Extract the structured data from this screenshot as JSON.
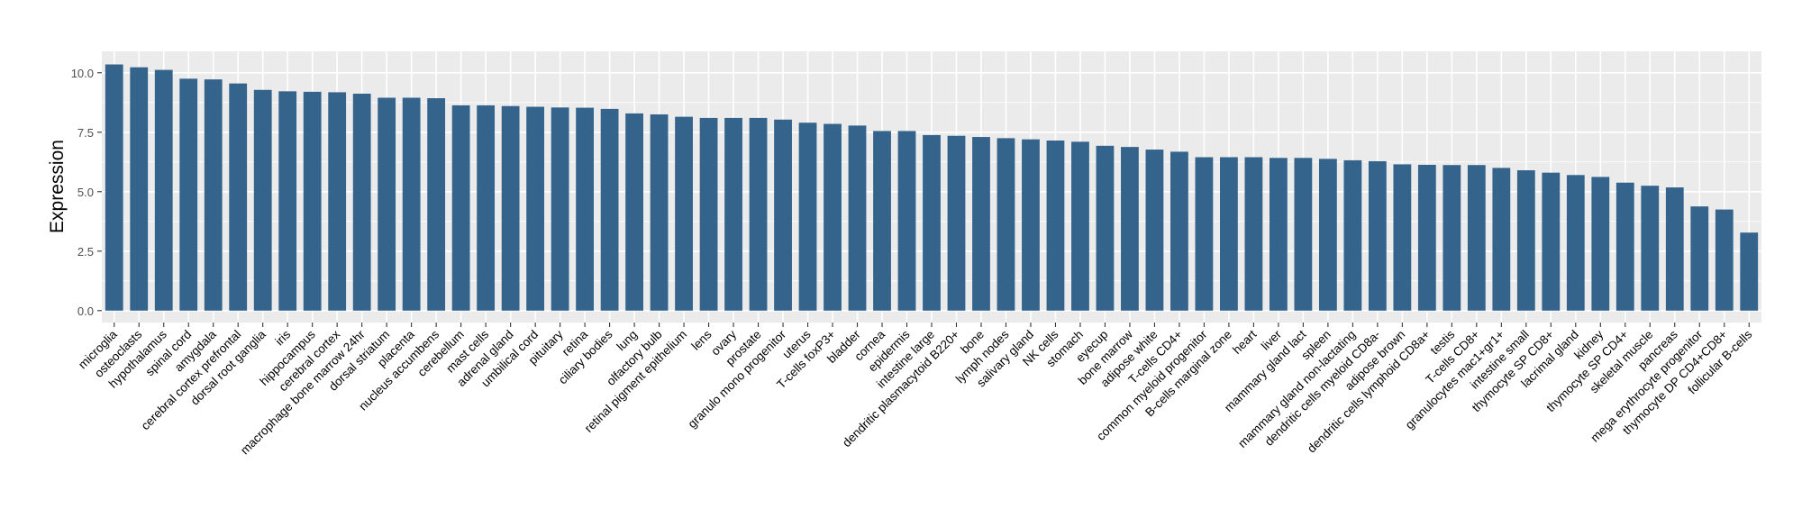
{
  "chart_data": {
    "type": "bar",
    "title": "",
    "xlabel": "",
    "ylabel": "Expression",
    "ylim": [
      -0.5,
      10.9
    ],
    "yticks": [
      0.0,
      2.5,
      5.0,
      7.5,
      10.0
    ],
    "ytick_labels": [
      "0.0",
      "2.5",
      "5.0",
      "7.5",
      "10.0"
    ],
    "grid": true,
    "legend": "none",
    "colors": {
      "bar": "#34638c",
      "panel": "#ebebeb",
      "grid": "#ffffff",
      "axis_text": "#4d4d4d",
      "label": "#000000"
    },
    "categories": [
      "microglia",
      "osteoclasts",
      "hypothalamus",
      "spinal cord",
      "amygdala",
      "cerebral cortex prefrontal",
      "dorsal root ganglia",
      "iris",
      "hippocampus",
      "cerebral cortex",
      "macrophage bone marrow 24hr",
      "dorsal striatum",
      "placenta",
      "nucleus accumbens",
      "cerebellum",
      "mast cells",
      "adrenal gland",
      "umbilical cord",
      "pituitary",
      "retina",
      "ciliary bodies",
      "lung",
      "olfactory bulb",
      "retinal pigment epithelium",
      "lens",
      "ovary",
      "prostate",
      "granulo mono progenitor",
      "uterus",
      "T-cells foxP3+",
      "bladder",
      "cornea",
      "epidermis",
      "intestine large",
      "dendritic plasmacytoid B220+",
      "bone",
      "lymph nodes",
      "salivary gland",
      "NK cells",
      "stomach",
      "eyecup",
      "bone marrow",
      "adipose white",
      "T-cells CD4+",
      "common myeloid progenitor",
      "B-cells marginal zone",
      "heart",
      "liver",
      "mammary gland lact",
      "spleen",
      "mammary gland non-lactating",
      "dendritic cells myeloid CD8a-",
      "adipose brown",
      "dendritic cells lymphoid CD8a+",
      "testis",
      "T-cells CD8+",
      "granulocytes mac1+gr1+",
      "intestine small",
      "thymocyte SP CD8+",
      "lacrimal gland",
      "kidney",
      "thymocyte SP CD4+",
      "skeletal muscle",
      "pancreas",
      "mega erythrocyte progenitor",
      "thymocyte DP CD4+CD8+",
      "follicular B-cells"
    ],
    "values": [
      10.35,
      10.23,
      10.12,
      9.75,
      9.72,
      9.55,
      9.28,
      9.22,
      9.2,
      9.18,
      9.12,
      8.95,
      8.95,
      8.93,
      8.63,
      8.63,
      8.6,
      8.57,
      8.54,
      8.53,
      8.48,
      8.29,
      8.25,
      8.15,
      8.1,
      8.1,
      8.1,
      8.03,
      7.9,
      7.85,
      7.78,
      7.55,
      7.55,
      7.38,
      7.35,
      7.3,
      7.25,
      7.2,
      7.15,
      7.1,
      6.93,
      6.88,
      6.77,
      6.68,
      6.45,
      6.45,
      6.45,
      6.42,
      6.42,
      6.38,
      6.32,
      6.28,
      6.15,
      6.13,
      6.12,
      6.12,
      6.0,
      5.9,
      5.8,
      5.7,
      5.62,
      5.38,
      5.25,
      5.18,
      4.38,
      4.25,
      3.28
    ]
  }
}
